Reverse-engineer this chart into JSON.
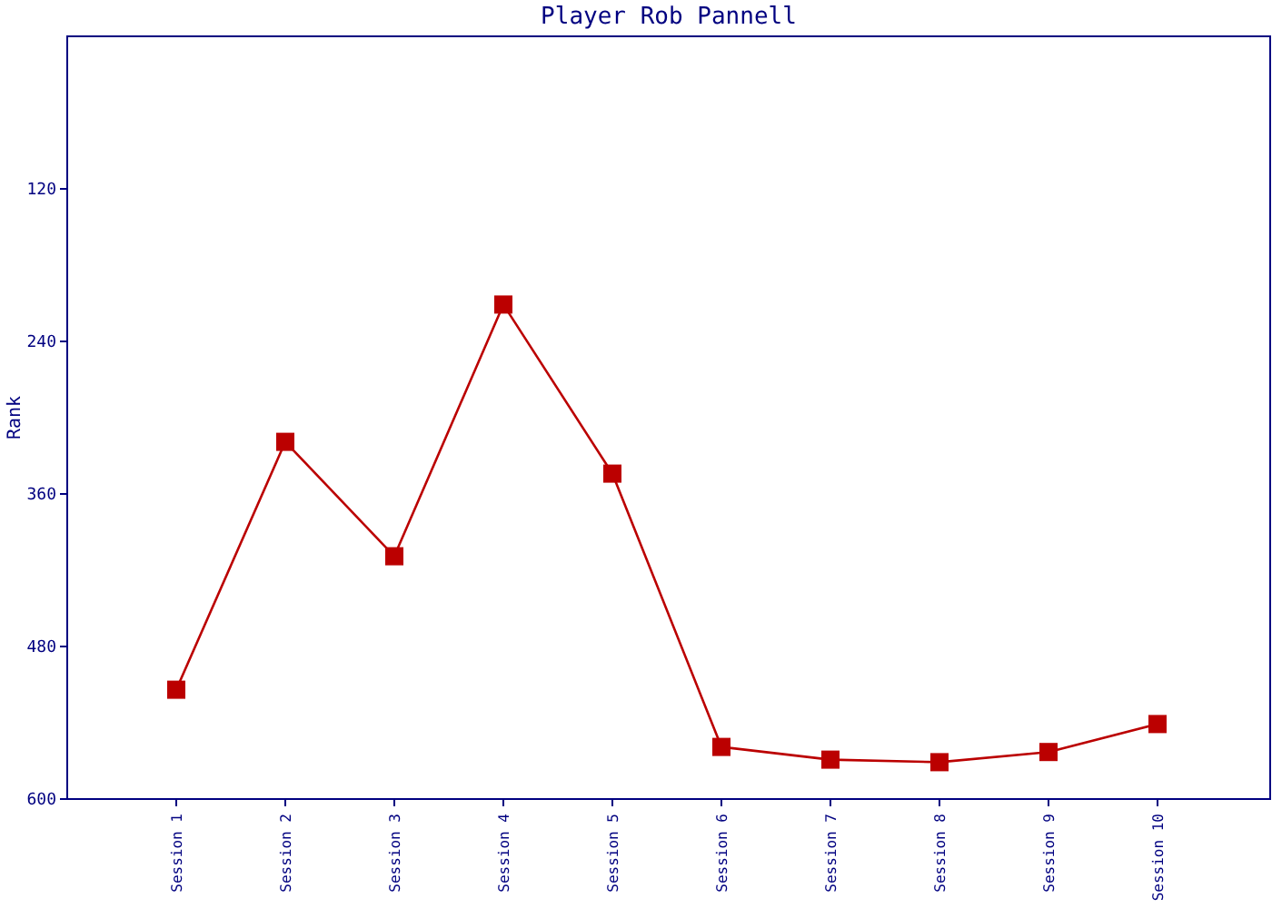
{
  "chart_data": {
    "type": "line",
    "title": "Player Rob Pannell",
    "ylabel": "Rank",
    "categories": [
      "Session 1",
      "Session 2",
      "Session 3",
      "Session 4",
      "Session 5",
      "Session 6",
      "Session 7",
      "Session 8",
      "Session 9",
      "Session 10"
    ],
    "series": [
      {
        "color": "#bb0000",
        "values": [
          514,
          319,
          409,
          211,
          344,
          559,
          569,
          571,
          563,
          541
        ]
      }
    ],
    "ylim": [
      600,
      0
    ],
    "yticks": [
      120,
      240,
      360,
      480,
      600
    ],
    "marker": "square",
    "line_style": "solid"
  }
}
